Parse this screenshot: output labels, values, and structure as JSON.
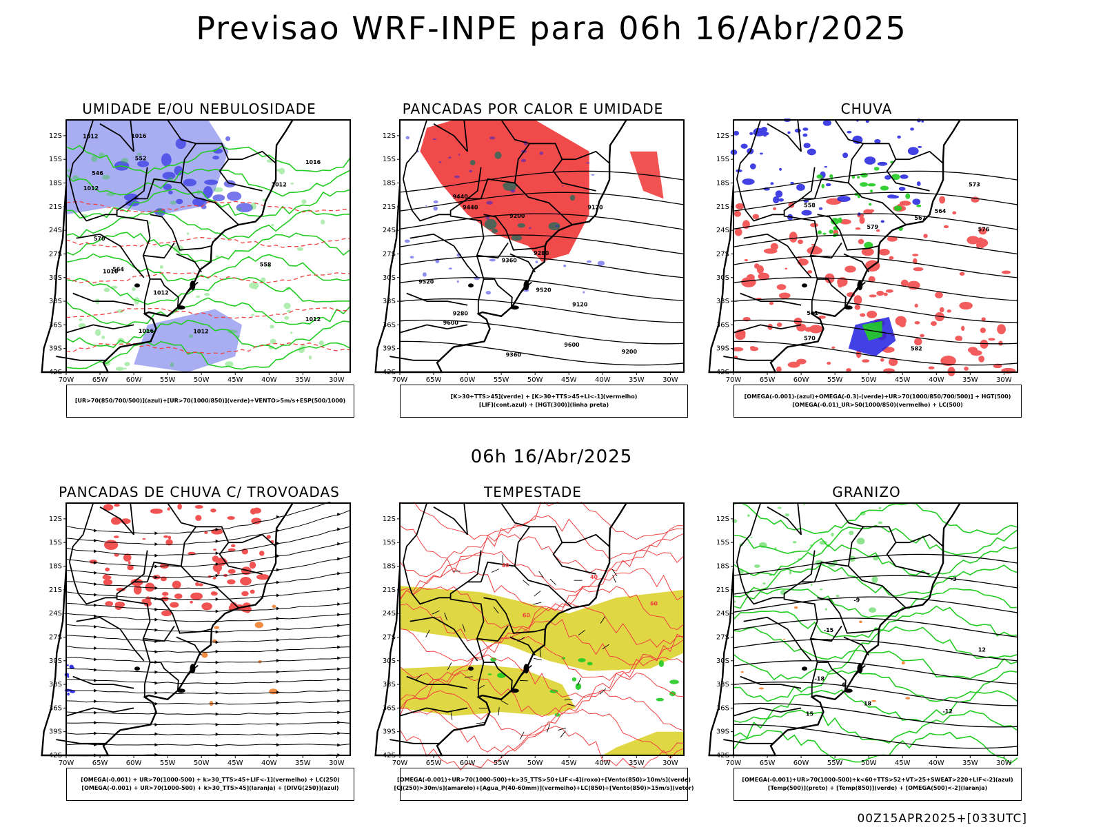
{
  "main_title": "Previsao WRF-INPE  para 06h 16/Abr/2025",
  "mid_title": "06h 16/Abr/2025",
  "footer": "00Z15APR2025+[033UTC]",
  "lat_labels": [
    "12S",
    "15S",
    "18S",
    "21S",
    "24S",
    "27S",
    "30S",
    "33S",
    "36S",
    "39S",
    "42S"
  ],
  "lon_labels": [
    "70W",
    "65W",
    "60W",
    "55W",
    "50W",
    "45W",
    "40W",
    "35W",
    "30W"
  ],
  "colors": {
    "lightblue": "#9aa0f0",
    "blue": "#2020e0",
    "green": "#22cc22",
    "red": "#f04040",
    "yellow": "#dcd430",
    "orange": "#f08030",
    "teal": "#2a6a5a",
    "black": "#000000"
  },
  "panels": [
    {
      "id": "umidade",
      "title": "UMIDADE E/OU NEBULOSIDADE",
      "legend": [
        "[UR>70(850/700/500)](azul)+[UR>70(1000/850)](verde)+VENTO>5m/s+ESP(500/1000)"
      ],
      "contour_labels": [
        "1012",
        "1012",
        "1012",
        "1012",
        "1012",
        "1012",
        "1016",
        "1016",
        "1016",
        "1016",
        "570",
        "564",
        "558",
        "552",
        "546"
      ]
    },
    {
      "id": "pancadas-calor",
      "title": "PANCADAS POR CALOR E UMIDADE",
      "legend": [
        "[K>30+TTS>45](verde) + [K>30+TTS>45+LI<-1](vermelho)",
        "[LIF](cont.azul) + [HGT(300)](linha preta)"
      ],
      "contour_labels": [
        "9600",
        "9600",
        "9520",
        "9520",
        "9440",
        "9440",
        "9360",
        "9360",
        "9280",
        "9280",
        "9200",
        "9200",
        "9120",
        "9120"
      ]
    },
    {
      "id": "chuva",
      "title": "CHUVA",
      "legend": [
        "[OMEGA(-0.001)-(azul)+OMEGA(-0.3)-(verde)+UR>70(1000/850/700/500)] + HGT(500)",
        "[OMEGA(-0.01)_UR>50(1000/850)(vermelho) + LC(500)"
      ],
      "contour_labels": [
        "582",
        "579",
        "576",
        "573",
        "570",
        "567",
        "564",
        "561",
        "558"
      ]
    },
    {
      "id": "pancadas-trovoadas",
      "title": "PANCADAS DE CHUVA C/ TROVOADAS",
      "legend": [
        "[OMEGA(-0.001) + UR>70(1000-500) + k>30_TTS>45+LIF<-1](vermelho) + LC(250)",
        "[OMEGA(-0.001) + UR>70(1000-500) + k>30_TTS>45](laranja) + [DIVG(250)](azul)"
      ],
      "contour_labels": []
    },
    {
      "id": "tempestade",
      "title": "TEMPESTADE",
      "legend": [
        "[OMEGA(-0.001)+UR>70(1000-500)+k>35_TTS>50+LIF<-4](roxo)+[Vento(850)>10m/s](verde)",
        "[CJ(250)>30m/s](amarelo)+[Agua_P(40-60mm)](vermelho)+LC(850)+[Vento(850)>15m/s](vetor)"
      ],
      "contour_labels": [
        "40",
        "40",
        "60",
        "60"
      ]
    },
    {
      "id": "granizo",
      "title": "GRANIZO",
      "legend": [
        "[OMEGA(-0.001)+UR>70(1000-500)+k<60+TTS>52+VT>25+SWEAT>220+LIF<-2](azul)",
        "[Temp(500)](preto) + [Temp(850)](verde) + [OMEGA(500)<-2](laranja)"
      ],
      "contour_labels": [
        "-3",
        "-6",
        "-9",
        "-12",
        "-15",
        "-18",
        "12",
        "15",
        "18"
      ]
    }
  ]
}
